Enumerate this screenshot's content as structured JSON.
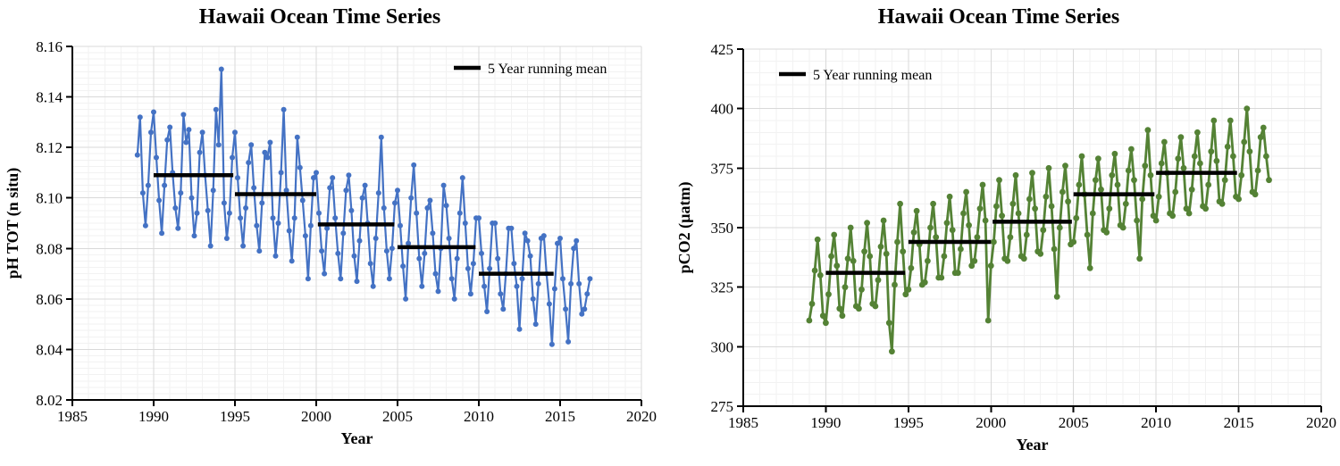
{
  "page": {
    "background": "#ffffff"
  },
  "chart_data": [
    {
      "type": "line",
      "title": "Hawaii Ocean Time Series",
      "xlabel": "Year",
      "ylabel": "pH TOT (n situ)",
      "legend": {
        "swatch": "line",
        "swatch_color": "#000000",
        "label": "5 Year running mean",
        "position": "top-right-inside"
      },
      "grid": true,
      "xlim": [
        1985,
        2020
      ],
      "ylim": [
        8.02,
        8.16
      ],
      "x_ticks": [
        1985,
        1990,
        1995,
        2000,
        2005,
        2010,
        2015,
        2020
      ],
      "x_minor_step": 1,
      "y_ticks": [
        8.02,
        8.04,
        8.06,
        8.08,
        8.1,
        8.12,
        8.14,
        8.16
      ],
      "y_tick_labels": [
        "8.02",
        "8.04",
        "8.06",
        "8.08",
        "8.10",
        "8.12",
        "8.14",
        "8.16"
      ],
      "y_minor_step": 0.0025,
      "series": [
        {
          "name": "observations",
          "color": "#4472C4",
          "marker": "circle",
          "start_year": 1989,
          "points_per_year": 6,
          "values": [
            8.117,
            8.132,
            8.102,
            8.089,
            8.105,
            8.126,
            8.134,
            8.116,
            8.099,
            8.086,
            8.105,
            8.123,
            8.128,
            8.11,
            8.096,
            8.088,
            8.102,
            8.133,
            8.122,
            8.127,
            8.1,
            8.085,
            8.094,
            8.118,
            8.126,
            8.109,
            8.095,
            8.081,
            8.103,
            8.135,
            8.121,
            8.151,
            8.098,
            8.084,
            8.094,
            8.116,
            8.126,
            8.108,
            8.092,
            8.081,
            8.096,
            8.114,
            8.121,
            8.104,
            8.089,
            8.079,
            8.098,
            8.118,
            8.116,
            8.122,
            8.092,
            8.077,
            8.09,
            8.11,
            8.135,
            8.103,
            8.087,
            8.075,
            8.092,
            8.124,
            8.112,
            8.099,
            8.085,
            8.068,
            8.089,
            8.108,
            8.11,
            8.094,
            8.079,
            8.07,
            8.088,
            8.104,
            8.108,
            8.092,
            8.078,
            8.068,
            8.086,
            8.103,
            8.109,
            8.095,
            8.077,
            8.067,
            8.083,
            8.1,
            8.105,
            8.09,
            8.074,
            8.065,
            8.084,
            8.102,
            8.124,
            8.096,
            8.079,
            8.068,
            8.08,
            8.098,
            8.103,
            8.089,
            8.073,
            8.06,
            8.082,
            8.1,
            8.113,
            8.094,
            8.076,
            8.065,
            8.078,
            8.096,
            8.099,
            8.086,
            8.07,
            8.063,
            8.08,
            8.105,
            8.097,
            8.084,
            8.068,
            8.06,
            8.076,
            8.094,
            8.108,
            8.09,
            8.072,
            8.062,
            8.074,
            8.092,
            8.092,
            8.078,
            8.065,
            8.055,
            8.072,
            8.09,
            8.09,
            8.076,
            8.062,
            8.056,
            8.07,
            8.088,
            8.088,
            8.074,
            8.065,
            8.048,
            8.068,
            8.086,
            8.083,
            8.077,
            8.06,
            8.05,
            8.066,
            8.084,
            8.085,
            8.07,
            8.058,
            8.042,
            8.064,
            8.082,
            8.084,
            8.068,
            8.056,
            8.043,
            8.066,
            8.08,
            8.083,
            8.066,
            8.054,
            8.056,
            8.062,
            8.068
          ]
        },
        {
          "name": "5 Year running mean",
          "color": "#000000",
          "type": "segments",
          "segments": [
            [
              1990.0,
              1994.9,
              8.109
            ],
            [
              1995.0,
              2000.0,
              8.1015
            ],
            [
              2000.1,
              2004.8,
              8.0895
            ],
            [
              2005.0,
              2009.8,
              8.0805
            ],
            [
              2010.0,
              2014.6,
              8.07
            ]
          ]
        }
      ]
    },
    {
      "type": "line",
      "title": "Hawaii Ocean Time Series",
      "xlabel": "Year",
      "ylabel": "pCO2 (µatm)",
      "legend": {
        "swatch": "line",
        "swatch_color": "#000000",
        "label": "5 Year running mean",
        "position": "top-left-inside"
      },
      "grid": true,
      "xlim": [
        1985,
        2020
      ],
      "ylim": [
        275,
        425
      ],
      "x_ticks": [
        1985,
        1990,
        1995,
        2000,
        2005,
        2010,
        2015,
        2020
      ],
      "x_minor_step": 1,
      "y_ticks": [
        275,
        300,
        325,
        350,
        375,
        400,
        425
      ],
      "y_tick_labels": [
        "275",
        "300",
        "325",
        "350",
        "375",
        "400",
        "425"
      ],
      "y_minor_step": 5,
      "series": [
        {
          "name": "observations",
          "color": "#548235",
          "marker": "circle",
          "start_year": 1989,
          "points_per_year": 6,
          "values": [
            311,
            318,
            332,
            345,
            330,
            313,
            310,
            322,
            338,
            347,
            334,
            316,
            313,
            325,
            337,
            350,
            336,
            317,
            316,
            324,
            340,
            352,
            338,
            318,
            317,
            328,
            342,
            353,
            339,
            310,
            298,
            326,
            344,
            360,
            340,
            322,
            324,
            333,
            348,
            357,
            343,
            326,
            327,
            336,
            350,
            360,
            346,
            329,
            329,
            338,
            352,
            363,
            349,
            331,
            331,
            341,
            356,
            365,
            351,
            334,
            336,
            346,
            358,
            368,
            353,
            311,
            334,
            344,
            359,
            370,
            355,
            337,
            336,
            346,
            360,
            372,
            356,
            338,
            337,
            347,
            362,
            373,
            358,
            340,
            339,
            349,
            363,
            375,
            359,
            341,
            321,
            350,
            365,
            376,
            361,
            343,
            344,
            354,
            368,
            380,
            364,
            347,
            333,
            356,
            370,
            379,
            366,
            349,
            348,
            358,
            372,
            381,
            368,
            351,
            350,
            360,
            374,
            383,
            370,
            353,
            337,
            362,
            376,
            391,
            372,
            355,
            353,
            363,
            377,
            386,
            373,
            356,
            355,
            365,
            379,
            388,
            375,
            358,
            356,
            366,
            380,
            390,
            377,
            359,
            358,
            368,
            382,
            395,
            378,
            361,
            360,
            370,
            384,
            395,
            380,
            363,
            362,
            372,
            386,
            400,
            382,
            365,
            364,
            374,
            388,
            392,
            380,
            370
          ]
        },
        {
          "name": "5 Year running mean",
          "color": "#000000",
          "type": "segments",
          "segments": [
            [
              1990.0,
              1994.8,
              331
            ],
            [
              1995.0,
              2000.0,
              344
            ],
            [
              2000.1,
              2004.9,
              352.5
            ],
            [
              2005.0,
              2009.9,
              364
            ],
            [
              2010.0,
              2014.9,
              373
            ]
          ]
        }
      ]
    }
  ],
  "colors": {
    "ph_series": "#4472C4",
    "pco2_series": "#548235",
    "running_mean": "#000000",
    "major_grid": "#D9D9D9",
    "minor_grid": "#F2F2F2",
    "axis": "#000000"
  }
}
